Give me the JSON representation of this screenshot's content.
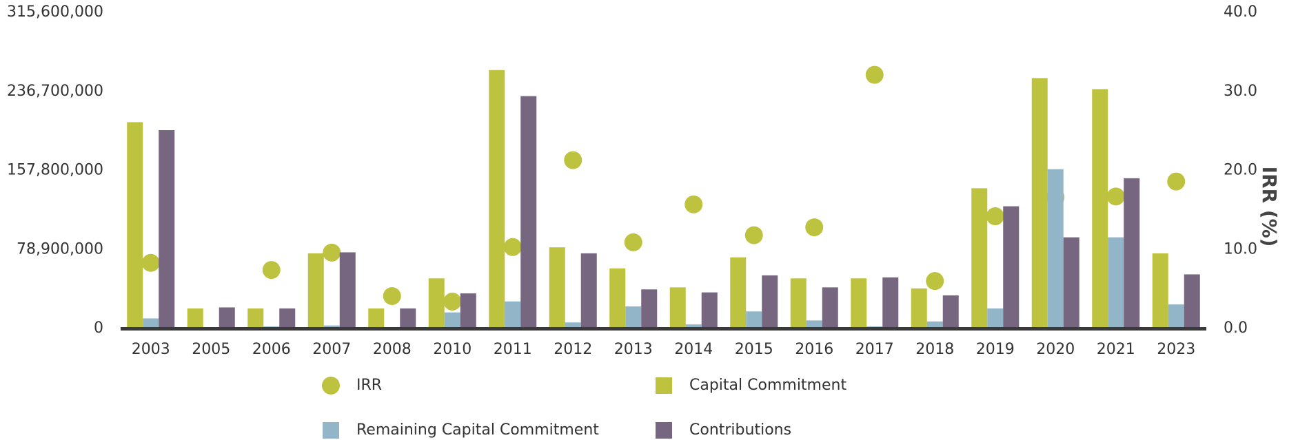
{
  "chart_data": {
    "type": "bar",
    "categories": [
      "2003",
      "2005",
      "2006",
      "2007",
      "2008",
      "2010",
      "2011",
      "2012",
      "2013",
      "2014",
      "2015",
      "2016",
      "2017",
      "2018",
      "2019",
      "2020",
      "2021",
      "2023"
    ],
    "series": [
      {
        "name": "IRR",
        "type": "scatter",
        "axis": "y2",
        "color": "#bdc23f",
        "values": [
          8.3,
          null,
          7.4,
          9.6,
          4.1,
          3.4,
          10.3,
          21.3,
          10.9,
          15.7,
          11.8,
          12.8,
          32.1,
          6.0,
          14.2,
          16.6,
          16.7,
          18.6
        ]
      },
      {
        "name": "Capital Commitment",
        "color": "#bdc23f",
        "values": [
          206000000,
          20000000,
          20000000,
          75000000,
          20000000,
          50000000,
          258000000,
          81000000,
          60000000,
          41000000,
          71000000,
          50000000,
          50000000,
          40000000,
          140000000,
          250000000,
          239000000,
          75000000
        ]
      },
      {
        "name": "Remaining Capital Commitment",
        "color": "#93b5c8",
        "values": [
          10000000,
          0,
          2000000,
          3000000,
          1000000,
          16000000,
          27000000,
          6000000,
          22000000,
          4000000,
          17000000,
          8000000,
          2000000,
          7000000,
          20000000,
          159000000,
          91000000,
          24000000
        ]
      },
      {
        "name": "Contributions",
        "color": "#76667f",
        "values": [
          198000000,
          21000000,
          20000000,
          76000000,
          20000000,
          35000000,
          232000000,
          75000000,
          39000000,
          36000000,
          53000000,
          41000000,
          51000000,
          33000000,
          122000000,
          91000000,
          150000000,
          54000000
        ]
      }
    ],
    "ylim": [
      0,
      315600000
    ],
    "yticks": [
      0,
      {
        "value": 78900000,
        "label": "78,900,000"
      },
      {
        "value": 157800000,
        "label": "157,800,000"
      },
      {
        "value": 236700000,
        "label": "236,700,000"
      },
      {
        "value": 315600000,
        "label": "315,600,000"
      }
    ],
    "y2lim": [
      0,
      40
    ],
    "y2ticks": [
      {
        "value": 0,
        "label": "0.0"
      },
      {
        "value": 10,
        "label": "10.0"
      },
      {
        "value": 20,
        "label": "20.0"
      },
      {
        "value": 30,
        "label": "30.0"
      },
      {
        "value": 40,
        "label": "40.0"
      }
    ],
    "y2label": "IRR (%)",
    "grid": false
  }
}
